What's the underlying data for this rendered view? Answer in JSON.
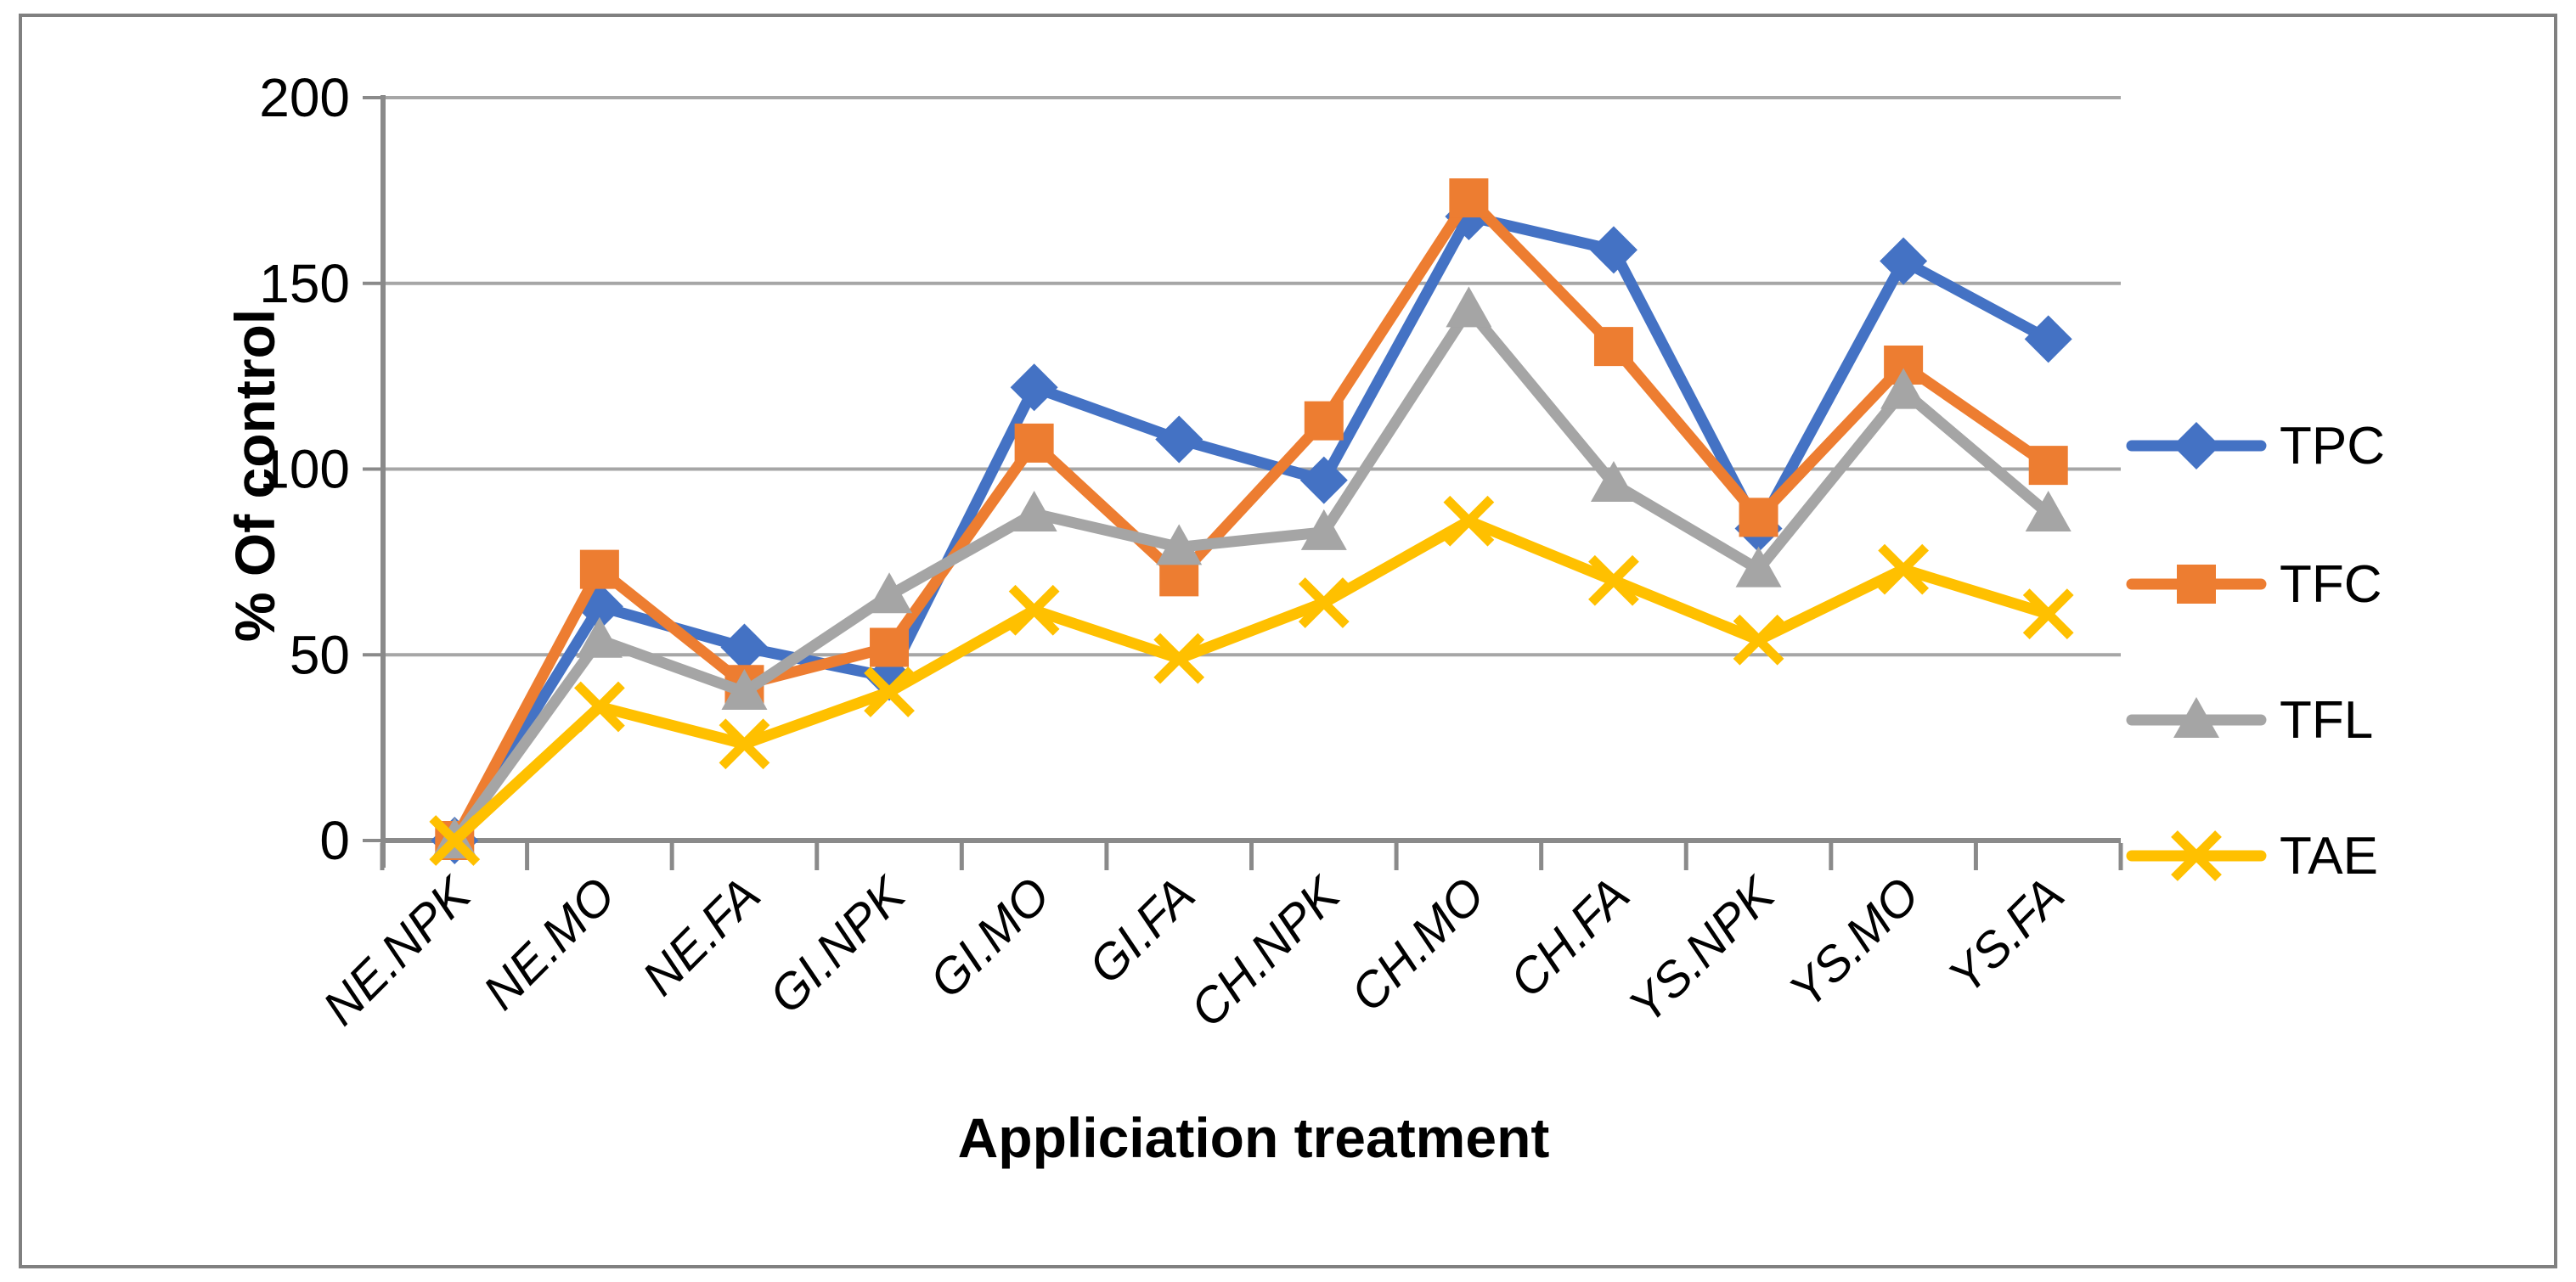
{
  "chart_data": {
    "type": "line",
    "title": "",
    "xlabel": "Appliciation treatment",
    "ylabel": "% Of control",
    "categories": [
      "NE.NPK",
      "NE.MO",
      "NE.FA",
      "GI.NPK",
      "GI.MO",
      "GI.FA",
      "CH.NPK",
      "CH.MO",
      "CH.FA",
      "YS.NPK",
      "YS.MO",
      "YS.FA"
    ],
    "series": [
      {
        "name": "TPC",
        "marker": "diamond",
        "color": "#4472C4",
        "values": [
          0,
          63,
          52,
          44,
          122,
          108,
          97,
          168,
          159,
          84,
          156,
          135
        ]
      },
      {
        "name": "TFC",
        "marker": "square",
        "color": "#ED7D31",
        "values": [
          0,
          73,
          42,
          52,
          107,
          71,
          113,
          173,
          133,
          87,
          128,
          101
        ]
      },
      {
        "name": "TFL",
        "marker": "triangle",
        "color": "#A5A5A5",
        "values": [
          0,
          54,
          40,
          66,
          88,
          79,
          83,
          143,
          96,
          73,
          121,
          88
        ]
      },
      {
        "name": "TAE",
        "marker": "x",
        "color": "#FFC000",
        "values": [
          0,
          36,
          26,
          40,
          62,
          49,
          64,
          86,
          70,
          54,
          73,
          61
        ]
      }
    ],
    "ylim": [
      0,
      200
    ],
    "ytick_step": 50,
    "ytick_labels": [
      "0",
      "50",
      "100",
      "150",
      "200"
    ],
    "grid": true,
    "legend_position": "right"
  },
  "style_colors": {
    "gridline": "#A6A6A6",
    "axis": "#8A8A8A",
    "border": "#808080",
    "text": "#000000"
  }
}
